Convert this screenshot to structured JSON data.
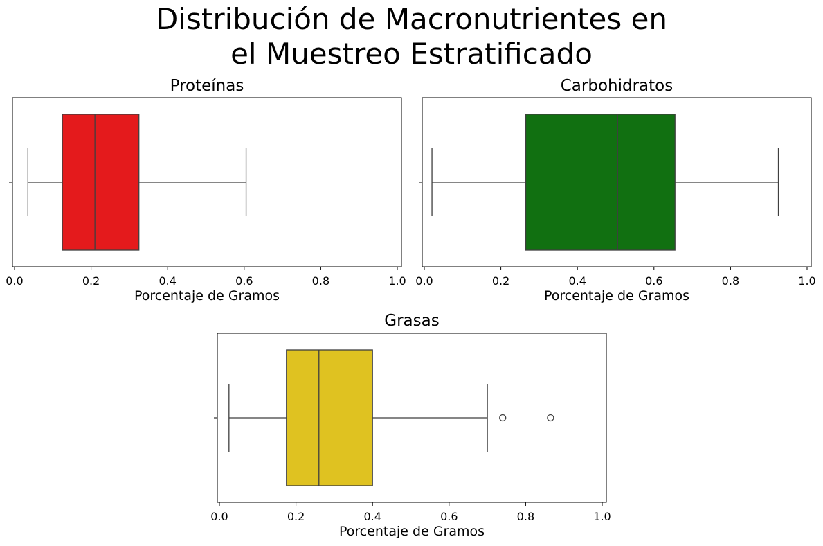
{
  "figure": {
    "title_line1": "Distribución de Macronutrientes en",
    "title_line2": "el Muestreo Estratificado"
  },
  "chart_data": [
    {
      "type": "box",
      "title": "Proteínas",
      "xlabel": "Porcentaje de Gramos",
      "ylabel": "",
      "xlim": [
        0,
        1
      ],
      "xticks": [
        "0.0",
        "0.2",
        "0.4",
        "0.6",
        "0.8",
        "1.0"
      ],
      "color": "#e41a1c",
      "box": {
        "whislo": 0.035,
        "q1": 0.125,
        "median": 0.21,
        "q3": 0.325,
        "whishi": 0.605,
        "fliers": []
      }
    },
    {
      "type": "box",
      "title": "Carbohidratos",
      "xlabel": "Porcentaje de Gramos",
      "ylabel": "",
      "xlim": [
        0,
        1
      ],
      "xticks": [
        "0.0",
        "0.2",
        "0.4",
        "0.6",
        "0.8",
        "1.0"
      ],
      "color": "#117011",
      "box": {
        "whislo": 0.02,
        "q1": 0.265,
        "median": 0.505,
        "q3": 0.655,
        "whishi": 0.925,
        "fliers": []
      }
    },
    {
      "type": "box",
      "title": "Grasas",
      "xlabel": "Porcentaje de Gramos",
      "ylabel": "",
      "xlim": [
        0,
        1
      ],
      "xticks": [
        "0.0",
        "0.2",
        "0.4",
        "0.6",
        "0.8",
        "1.0"
      ],
      "color": "#dfc221",
      "box": {
        "whislo": 0.025,
        "q1": 0.175,
        "median": 0.26,
        "q3": 0.4,
        "whishi": 0.7,
        "fliers": [
          0.74,
          0.865
        ]
      }
    }
  ]
}
